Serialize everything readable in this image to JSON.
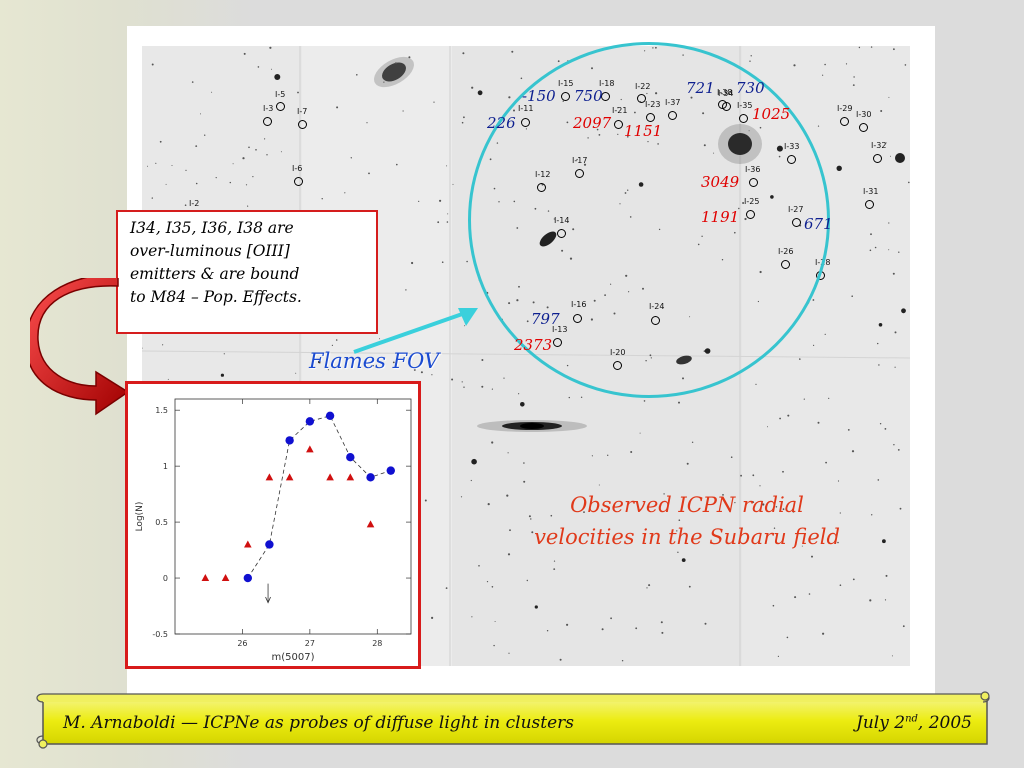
{
  "note": {
    "lines": [
      "I34, I35, I36, I38 are",
      "over-luminous [OIII]",
      "emitters & are bound",
      "to M84 – Pop. Effects."
    ]
  },
  "flames_label": "Flames FOV",
  "caption": "Observed ICPN radial velocities in the Subaru field",
  "footer": {
    "title": "M. Arnaboldi — ICPNe as probes of diffuse light in clusters",
    "date_prefix": "July 2",
    "date_sup": "nd",
    "date_suffix": ", 2005"
  },
  "objects": [
    "I-2",
    "I-3",
    "I-5",
    "I-6",
    "I-7",
    "I-11",
    "I-12",
    "I-13",
    "I-14",
    "I-15",
    "I-16",
    "I-17",
    "I-18",
    "I-20",
    "I-21",
    "I-22",
    "I-23",
    "I-24",
    "I-25",
    "I-26",
    "I-27",
    "I-28",
    "I-29",
    "I-30",
    "I-31",
    "I-32",
    "I-33",
    "I-34",
    "I-35",
    "I-36",
    "I-37",
    "I-38"
  ],
  "velocities": {
    "blue": [
      "-150",
      "750",
      "721",
      "730",
      "226",
      "671",
      "797"
    ],
    "red": [
      "2097",
      "1151",
      "1025",
      "3049",
      "1191",
      "2373"
    ]
  },
  "chart_data": {
    "type": "scatter",
    "xlabel": "m(5007)",
    "ylabel": "Log(N)",
    "xlim": [
      25.0,
      28.5
    ],
    "ylim": [
      -0.5,
      1.6
    ],
    "xticks": [
      "26",
      "27",
      "28"
    ],
    "yticks": [
      "-0.5",
      "0",
      "0.5",
      "1",
      "1.5"
    ],
    "series": [
      {
        "marker": "circle",
        "color": "#1010d0",
        "connected": "dashed",
        "x": [
          26.08,
          26.4,
          26.7,
          27.0,
          27.3,
          27.6,
          27.9,
          28.2
        ],
        "y": [
          0.0,
          0.3,
          1.23,
          1.4,
          1.45,
          1.08,
          0.9,
          0.96
        ]
      },
      {
        "marker": "triangle",
        "color": "#d01010",
        "connected": "none",
        "x": [
          25.45,
          25.75,
          26.08,
          26.4,
          26.7,
          27.0,
          27.3,
          27.6,
          27.9
        ],
        "y": [
          0.0,
          0.0,
          0.3,
          0.9,
          0.9,
          1.15,
          0.9,
          0.9,
          0.48
        ]
      }
    ],
    "annotations": [
      {
        "type": "arrow-down",
        "x": 26.38
      }
    ]
  }
}
